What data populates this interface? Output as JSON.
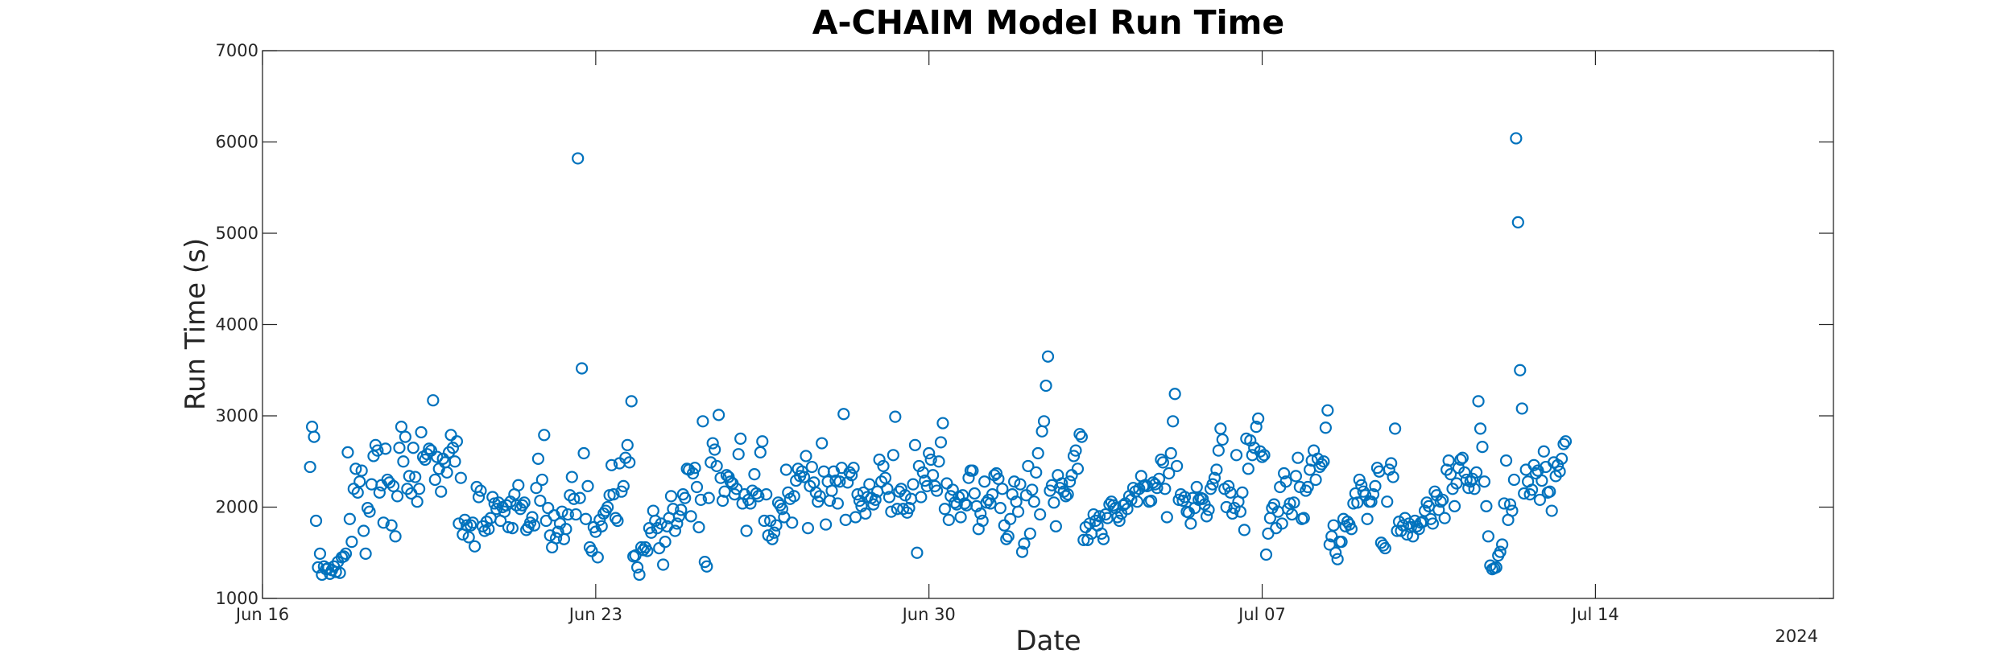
{
  "chart_data": {
    "type": "scatter",
    "title": "A-CHAIM Model Run Time",
    "xlabel": "Date",
    "ylabel": "Run Time (s)",
    "xlim": [
      "2024-06-16",
      "2024-07-19"
    ],
    "ylim": [
      1000,
      7000
    ],
    "x_ticks": [
      "2024-06-16",
      "2024-06-23",
      "2024-06-30",
      "2024-07-07",
      "2024-07-14"
    ],
    "x_tick_labels": [
      "Jun 16",
      "Jun 23",
      "Jun 30",
      "Jul 07",
      "Jul 14"
    ],
    "x_secondary_label": "2024",
    "y_ticks": [
      1000,
      2000,
      3000,
      4000,
      5000,
      6000,
      7000
    ],
    "y_tick_labels": [
      "1000",
      "2000",
      "3000",
      "4000",
      "5000",
      "6000",
      "7000"
    ],
    "grid": false,
    "marker": "open-circle",
    "series_color": "#0072BD",
    "x_spacing_hours": 1,
    "x_start": "2024-06-17T00:00",
    "values": [
      2440,
      2880,
      2770,
      1850,
      1340,
      1490,
      1260,
      1350,
      1320,
      1330,
      1270,
      1310,
      1350,
      1290,
      1400,
      1280,
      1450,
      1460,
      1490,
      2600,
      1870,
      1620,
      2200,
      2420,
      2160,
      2280,
      2400,
      1740,
      1490,
      1990,
      1950,
      2250,
      2560,
      2680,
      2620,
      2160,
      2240,
      1830,
      2640,
      2300,
      2270,
      1800,
      2230,
      1680,
      2120,
      2650,
      2880,
      2500,
      2770,
      2200,
      2340,
      2150,
      2650,
      2330,
      2060,
      2200,
      2820,
      2550,
      2520,
      2580,
      2640,
      2620,
      3170,
      2300,
      2550,
      2420,
      2170,
      2530,
      2490,
      2380,
      2600,
      2790,
      2650,
      2500,
      2720,
      1820,
      2320,
      1700,
      1860,
      1800,
      1670,
      1800,
      1830,
      1570,
      2220,
      2110,
      2180,
      1790,
      1740,
      1840,
      1760,
      1880,
      2110,
      2040,
      1980,
      2050,
      1850,
      2000,
      1950,
      2020,
      1780,
      2060,
      1770,
      2140,
      2020,
      2240,
      1980,
      2020,
      2050,
      1750,
      1780,
      1830,
      1890,
      1800,
      2210,
      2530,
      2070,
      2300,
      2790,
      1850,
      1990,
      1690,
      1560,
      1910,
      1660,
      1730,
      1820,
      1950,
      1650,
      1760,
      1920,
      2130,
      2330,
      2090,
      1920,
      5820,
      2100,
      3520,
      2590,
      1870,
      2230,
      1560,
      1520,
      1780,
      1730,
      1450,
      1860,
      1790,
      1930,
      1960,
      2000,
      2130,
      2460,
      2140,
      1880,
      1850,
      2480,
      2170,
      2230,
      2540,
      2680,
      2490,
      3160,
      1460,
      1470,
      1340,
      1260,
      1560,
      1530,
      1560,
      1520,
      1770,
      1720,
      1960,
      1850,
      1770,
      1550,
      1820,
      1370,
      1620,
      1790,
      1880,
      2120,
      1980,
      1740,
      1820,
      1900,
      1970,
      2140,
      2100,
      2420,
      2410,
      1900,
      2370,
      2430,
      2220,
      1780,
      2080,
      2940,
      1400,
      1350,
      2100,
      2490,
      2700,
      2630,
      2450,
      3010,
      2320,
      2070,
      2170,
      2350,
      2330,
      2280,
      2260,
      2140,
      2200,
      2580,
      2750,
      2040,
      2140,
      1740,
      2080,
      2040,
      2180,
      2360,
      2150,
      2120,
      2600,
      2720,
      1850,
      2140,
      1690,
      1850,
      1650,
      1720,
      1800,
      2050,
      2020,
      1980,
      1890,
      2410,
      2160,
      2090,
      1830,
      2120,
      2290,
      2420,
      2340,
      2390,
      2330,
      2560,
      1770,
      2230,
      2440,
      2270,
      2160,
      2060,
      2120,
      2700,
      2390,
      1810,
      2280,
      2070,
      2180,
      2390,
      2290,
      2040,
      2280,
      2430,
      3020,
      1860,
      2270,
      2380,
      2350,
      2430,
      1890,
      2140,
      2070,
      2010,
      2160,
      1930,
      2110,
      2250,
      2100,
      2030,
      2080,
      2170,
      2520,
      2280,
      2450,
      2320,
      2200,
      2110,
      1950,
      2570,
      2990,
      1980,
      2170,
      2200,
      1980,
      2130,
      1940,
      1990,
      2090,
      2250,
      2680,
      1500,
      2450,
      2110,
      2380,
      2290,
      2230,
      2590,
      2520,
      2350,
      2230,
      2180,
      2500,
      2710,
      2920,
      1980,
      2260,
      1860,
      2120,
      2190,
      2050,
      2030,
      2110,
      1890,
      2130,
      2040,
      2020,
      2320,
      2400,
      2400,
      2150,
      2010,
      1760,
      1930,
      1850,
      2280,
      2050,
      2080,
      2040,
      2140,
      2350,
      2370,
      2310,
      1990,
      2200,
      1800,
      1650,
      1680,
      1870,
      2140,
      2280,
      2060,
      1950,
      2250,
      1510,
      1600,
      2130,
      2450,
      1710,
      2190,
      2060,
      2380,
      2590,
      1920,
      2830,
      2940,
      3330,
      3650,
      2180,
      2240,
      2050,
      1790,
      2350,
      2210,
      2260,
      2170,
      2120,
      2140,
      2280,
      2350,
      2560,
      2620,
      2420,
      2800,
      2770,
      1640,
      1780,
      1640,
      1820,
      1710,
      1920,
      1850,
      1800,
      1900,
      1710,
      1650,
      1920,
      1880,
      2030,
      2060,
      2020,
      1990,
      1890,
      1850,
      1930,
      2020,
      2040,
      1980,
      2120,
      2080,
      2210,
      2170,
      2060,
      2200,
      2340,
      2230,
      2240,
      2230,
      2060,
      2070,
      2270,
      2250,
      2210,
      2310,
      2520,
      2490,
      2200,
      1890,
      2370,
      2590,
      2940,
      3240,
      2450,
      2080,
      2140,
      2070,
      2110,
      1950,
      1940,
      1820,
      2100,
      1990,
      2220,
      2080,
      2100,
      2090,
      2030,
      1900,
      1970,
      2200,
      2250,
      2320,
      2410,
      2620,
      2860,
      2740,
      2200,
      2000,
      2230,
      2160,
      1930,
      1990,
      2570,
      2060,
      1950,
      2160,
      1750,
      2750,
      2420,
      2730,
      2570,
      2650,
      2880,
      2970,
      2610,
      2550,
      2570,
      1480,
      1710,
      1880,
      1990,
      2030,
      1770,
      1950,
      2220,
      1820,
      2370,
      2280,
      1980,
      2040,
      1920,
      2050,
      2340,
      2540,
      2220,
      1870,
      1880,
      2180,
      2220,
      2410,
      2510,
      2620,
      2300,
      2530,
      2440,
      2470,
      2500,
      2870,
      3060,
      1590,
      1680,
      1800,
      1500,
      1430,
      1620,
      1620,
      1870,
      1790,
      1840,
      1810,
      1760,
      2040,
      2150,
      2050,
      2300,
      2240,
      2170,
      2130,
      1870,
      2060,
      2060,
      2140,
      2230,
      2430,
      2390,
      1610,
      1580,
      1550,
      2060,
      2410,
      2480,
      2330,
      2860,
      1740,
      1840,
      1740,
      1800,
      1880,
      1700,
      1820,
      1780,
      1680,
      1850,
      1790,
      1760,
      1830,
      1840,
      1960,
      2050,
      2010,
      1870,
      1820,
      2170,
      2130,
      1970,
      2060,
      2080,
      1880,
      2410,
      2510,
      2360,
      2200,
      2010,
      2260,
      2430,
      2520,
      2540,
      2380,
      2300,
      2210,
      2280,
      2310,
      2200,
      2380,
      3160,
      2860,
      2660,
      2280,
      2010,
      1680,
      1360,
      1320,
      1330,
      1340,
      1470,
      1510,
      1590,
      2040,
      2510,
      1860,
      2030,
      1960,
      2300,
      6040,
      5120,
      3500,
      3080,
      2150,
      2410,
      2280,
      2140,
      2190,
      2460,
      2370,
      2400,
      2080,
      2290,
      2610,
      2440,
      2160,
      2170,
      1960,
      2490,
      2340,
      2460,
      2390,
      2530,
      2690,
      2720
    ]
  }
}
